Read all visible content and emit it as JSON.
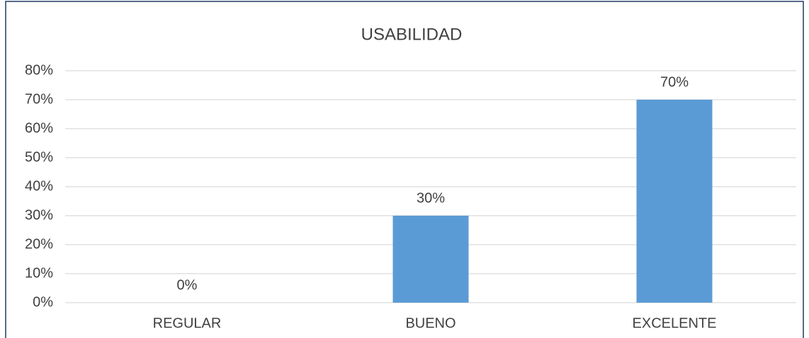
{
  "chart_data": {
    "type": "bar",
    "title": "USABILIDAD",
    "categories": [
      "REGULAR",
      "BUENO",
      "EXCELENTE"
    ],
    "values": [
      0,
      30,
      70
    ],
    "value_labels": [
      "0%",
      "30%",
      "70%"
    ],
    "color": "#5b9bd5",
    "ylim": [
      0,
      80
    ],
    "yticks": [
      {
        "value": 0,
        "label": "0%"
      },
      {
        "value": 10,
        "label": "10%"
      },
      {
        "value": 20,
        "label": "20%"
      },
      {
        "value": 30,
        "label": "30%"
      },
      {
        "value": 40,
        "label": "40%"
      },
      {
        "value": 50,
        "label": "50%"
      },
      {
        "value": 60,
        "label": "60%"
      },
      {
        "value": 70,
        "label": "70%"
      },
      {
        "value": 80,
        "label": "80%"
      }
    ],
    "grid": true
  }
}
